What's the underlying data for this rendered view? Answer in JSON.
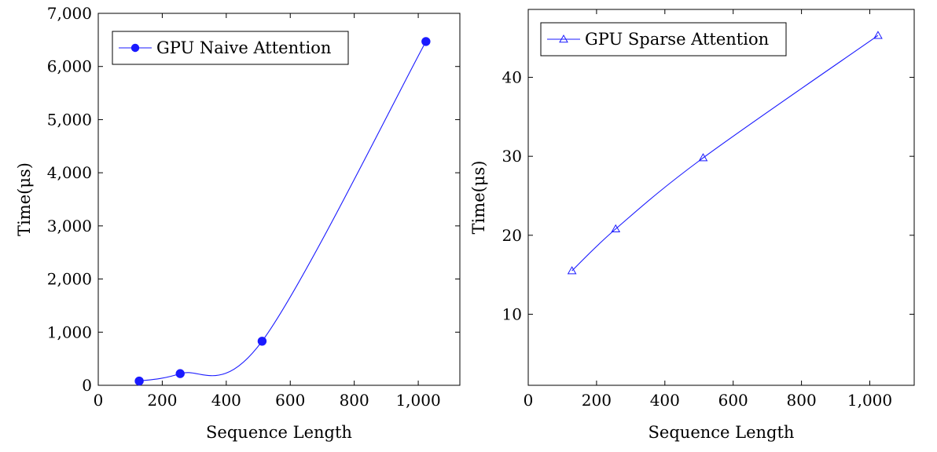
{
  "chart_data": [
    {
      "type": "line",
      "xlabel": "Sequence Length",
      "ylabel": "Time(μs)",
      "xlim": [
        0,
        1130
      ],
      "ylim": [
        0,
        7000
      ],
      "xticks": [
        0,
        200,
        400,
        600,
        800,
        1000
      ],
      "yticks": [
        0,
        1000,
        2000,
        3000,
        4000,
        5000,
        6000,
        7000
      ],
      "tick_format": "thousands-comma",
      "smooth": true,
      "legend_position": "top-left",
      "grid": false,
      "series": [
        {
          "name": "GPU Naive Attention",
          "marker": "filled-circle",
          "color": "#1a1aff",
          "x": [
            128,
            256,
            512,
            1024
          ],
          "y": [
            80,
            220,
            830,
            6470
          ]
        }
      ]
    },
    {
      "type": "line",
      "xlabel": "Sequence Length",
      "ylabel": "Time(μs)",
      "xlim": [
        0,
        1130
      ],
      "ylim": [
        1,
        48.6
      ],
      "xticks": [
        0,
        200,
        400,
        600,
        800,
        1000
      ],
      "yticks": [
        10,
        20,
        30,
        40
      ],
      "tick_format": "thousands-comma",
      "smooth": true,
      "legend_position": "top-left",
      "grid": false,
      "series": [
        {
          "name": "GPU Sparse Attention",
          "marker": "open-triangle",
          "color": "#1a1aff",
          "x": [
            128,
            256,
            512,
            1024
          ],
          "y": [
            15.5,
            20.8,
            29.8,
            45.3
          ]
        }
      ]
    }
  ]
}
